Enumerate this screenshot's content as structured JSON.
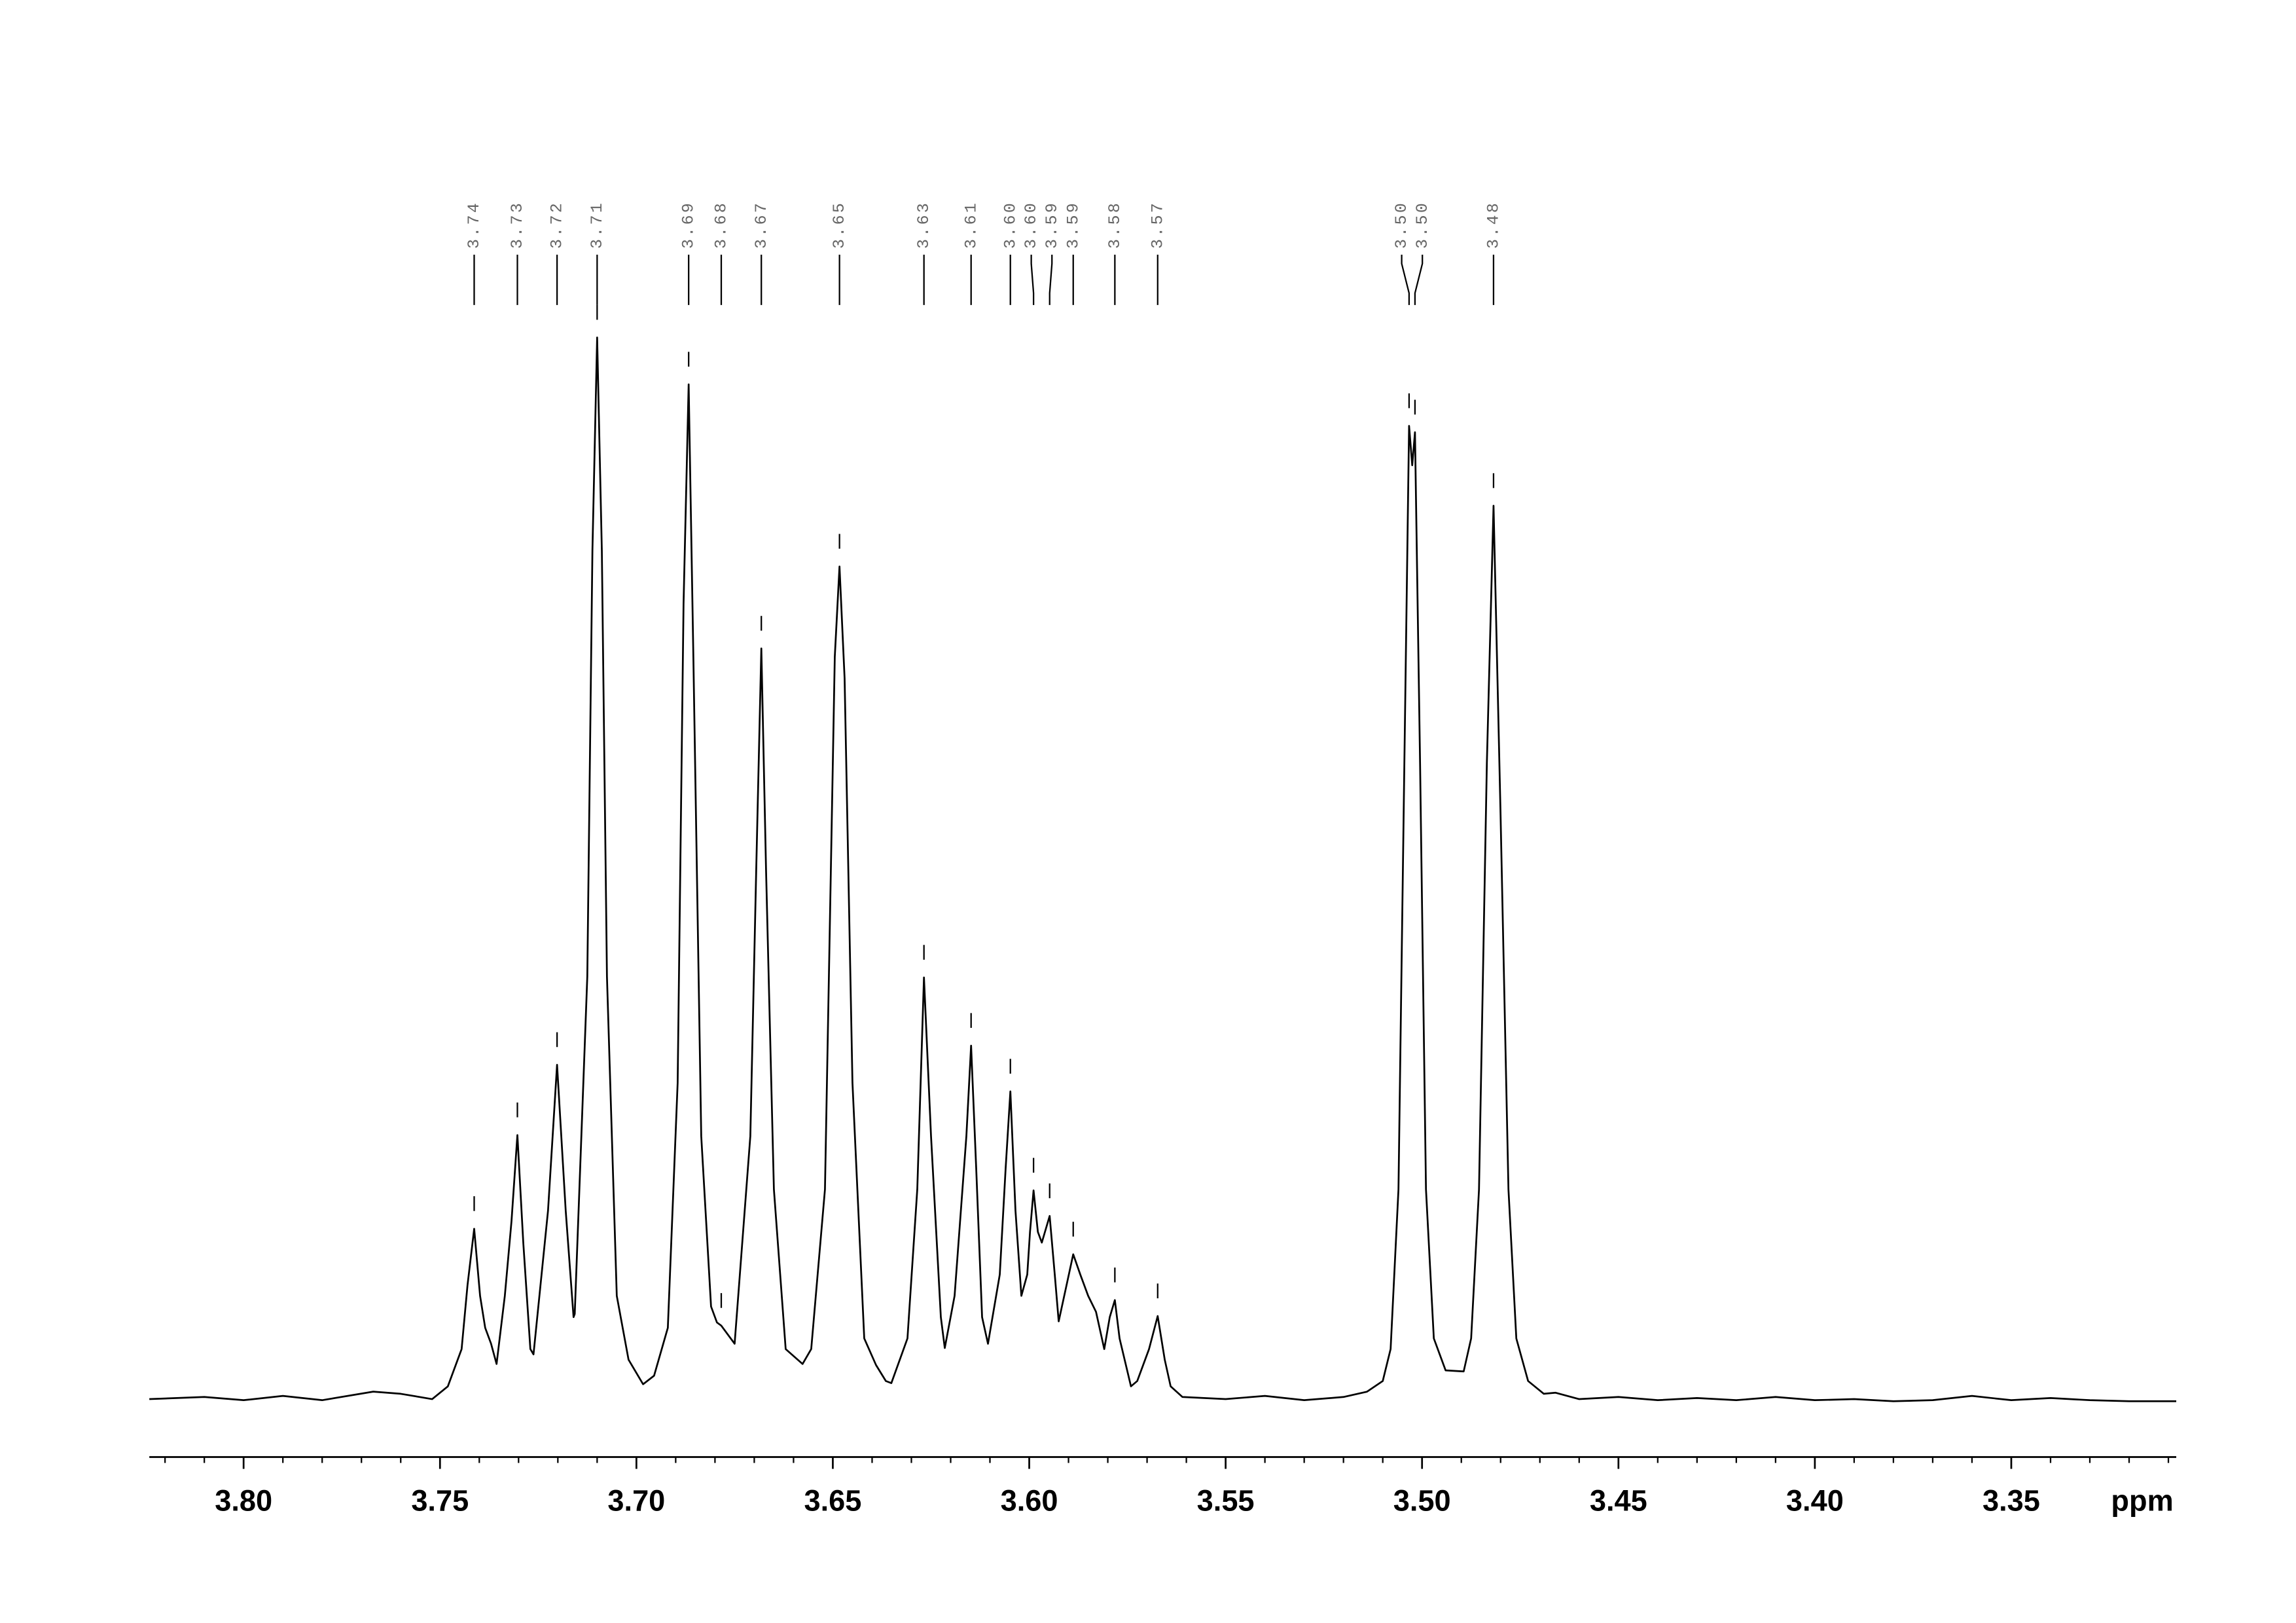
{
  "chart_data": {
    "type": "nmr",
    "xlabel": "ppm",
    "xlim": [
      3.824,
      3.308
    ],
    "ylim": [
      0,
      100
    ],
    "xticks": [
      {
        "value": 3.8,
        "label": "3.80"
      },
      3.75,
      {
        "value": 3.7,
        "label": "3.70"
      },
      3.65,
      {
        "value": 3.6,
        "label": "3.60"
      },
      3.55,
      {
        "value": 3.5,
        "label": "3.50"
      },
      3.45,
      {
        "value": 3.4,
        "label": "3.40"
      },
      3.35
    ],
    "xticks_minor": [
      3.82,
      3.81,
      3.79,
      3.78,
      3.77,
      3.76,
      3.74,
      3.73,
      3.72,
      3.71,
      3.69,
      3.68,
      3.67,
      3.66,
      3.64,
      3.63,
      3.62,
      3.61,
      3.59,
      3.58,
      3.57,
      3.56,
      3.54,
      3.53,
      3.52,
      3.51,
      3.49,
      3.48,
      3.47,
      3.46,
      3.44,
      3.43,
      3.42,
      3.41,
      3.39,
      3.38,
      3.37,
      3.36,
      3.34,
      3.33,
      3.32,
      3.31
    ],
    "color": "#000000",
    "label_color": "#666666",
    "peaks": [
      {
        "value": 3.7413,
        "label": "3.74"
      },
      {
        "value": 3.7303,
        "label": "3.73"
      },
      {
        "value": 3.7202,
        "label": "3.72"
      },
      {
        "value": 3.71,
        "label": "3.71"
      },
      {
        "value": 3.6867,
        "label": "3.69"
      },
      {
        "value": 3.6784,
        "label": "3.68"
      },
      {
        "value": 3.6682,
        "label": "3.67"
      },
      {
        "value": 3.6483,
        "label": "3.65"
      },
      {
        "value": 3.6268,
        "label": "3.63"
      },
      {
        "value": 3.6148,
        "label": "3.61"
      },
      {
        "value": 3.6048,
        "label": "3.60"
      },
      {
        "value": 3.5989,
        "label": "3.60"
      },
      {
        "value": 3.5948,
        "label": "3.59"
      },
      {
        "value": 3.5888,
        "label": "3.59"
      },
      {
        "value": 3.5782,
        "label": "3.58"
      },
      {
        "value": 3.5673,
        "label": "3.57"
      },
      {
        "value": 3.5033,
        "label": "3.50"
      },
      {
        "value": 3.5018,
        "label": "3.50"
      },
      {
        "value": 3.4818,
        "label": "3.48"
      }
    ],
    "x": [
      3.824,
      3.81,
      3.8,
      3.79,
      3.78,
      3.767,
      3.76,
      3.752,
      3.748,
      3.7445,
      3.743,
      3.7413,
      3.7398,
      3.7385,
      3.737,
      3.7356,
      3.7335,
      3.7318,
      3.7303,
      3.7288,
      3.727,
      3.7262,
      3.7225,
      3.7202,
      3.718,
      3.716,
      3.7157,
      3.7125,
      3.7112,
      3.71,
      3.7088,
      3.7075,
      3.705,
      3.702,
      3.6983,
      3.6955,
      3.692,
      3.6895,
      3.688,
      3.6867,
      3.6855,
      3.6835,
      3.681,
      3.6795,
      3.6784,
      3.675,
      3.671,
      3.6695,
      3.6682,
      3.667,
      3.665,
      3.662,
      3.6577,
      3.6555,
      3.652,
      3.6505,
      3.6495,
      3.6483,
      3.647,
      3.645,
      3.642,
      3.639,
      3.6365,
      3.6351,
      3.631,
      3.6285,
      3.6268,
      3.625,
      3.6225,
      3.6215,
      3.619,
      3.616,
      3.6148,
      3.6135,
      3.612,
      3.6105,
      3.6075,
      3.606,
      3.6048,
      3.6035,
      3.602,
      3.6005,
      3.5998,
      3.5989,
      3.5978,
      3.5968,
      3.5948,
      3.5935,
      3.5925,
      3.5905,
      3.5888,
      3.587,
      3.585,
      3.583,
      3.5809,
      3.5795,
      3.5782,
      3.577,
      3.5741,
      3.5725,
      3.5695,
      3.5673,
      3.5655,
      3.564,
      3.561,
      3.55,
      3.54,
      3.53,
      3.52,
      3.514,
      3.51,
      3.508,
      3.506,
      3.5045,
      3.5033,
      3.5025,
      3.5018,
      3.5005,
      3.499,
      3.497,
      3.494,
      3.4894,
      3.4875,
      3.4855,
      3.4835,
      3.4818,
      3.48,
      3.478,
      3.476,
      3.473,
      3.469,
      3.466,
      3.46,
      3.45,
      3.44,
      3.43,
      3.42,
      3.41,
      3.4,
      3.39,
      3.38,
      3.37,
      3.36,
      3.35,
      3.34,
      3.33,
      3.32,
      3.308
    ],
    "y": [
      0.3,
      0.5,
      0.2,
      0.6,
      0.2,
      1.0,
      0.8,
      0.3,
      1.5,
      5,
      11,
      16.3,
      10,
      7,
      5.5,
      3.6,
      10,
      17,
      25.1,
      15,
      5,
      4.5,
      18,
      31.7,
      18,
      8,
      8.3,
      40,
      80,
      100,
      80,
      40,
      10,
      4,
      1.7,
      2.5,
      7,
      30,
      75,
      95.6,
      70,
      25,
      9,
      7.5,
      7.2,
      5.5,
      25,
      50,
      70.8,
      50,
      20,
      5,
      3.6,
      5,
      20,
      50,
      70,
      78.5,
      68,
      30,
      6,
      3.5,
      2,
      1.8,
      6,
      20,
      39.9,
      25,
      8,
      5.1,
      10,
      25,
      33.5,
      22,
      8,
      5.5,
      12,
      22,
      29.2,
      18,
      10,
      12,
      16,
      19.9,
      16,
      15,
      17.5,
      12,
      7.6,
      11,
      13.9,
      12,
      10,
      8.5,
      5,
      8,
      9.6,
      6,
      1.5,
      2,
      5,
      8.1,
      4,
      1.5,
      0.5,
      0.3,
      0.6,
      0.2,
      0.5,
      1,
      2,
      5,
      20,
      60,
      91.7,
      88,
      91.1,
      60,
      20,
      6,
      3,
      2.9,
      6,
      20,
      60,
      84.2,
      55,
      20,
      6,
      2,
      0.8,
      0.9,
      0.3,
      0.5,
      0.2,
      0.4,
      0.2,
      0.5,
      0.2,
      0.3,
      0.1,
      0.2,
      0.6,
      0.2,
      0.4,
      0.2,
      0.1,
      0.1
    ]
  }
}
